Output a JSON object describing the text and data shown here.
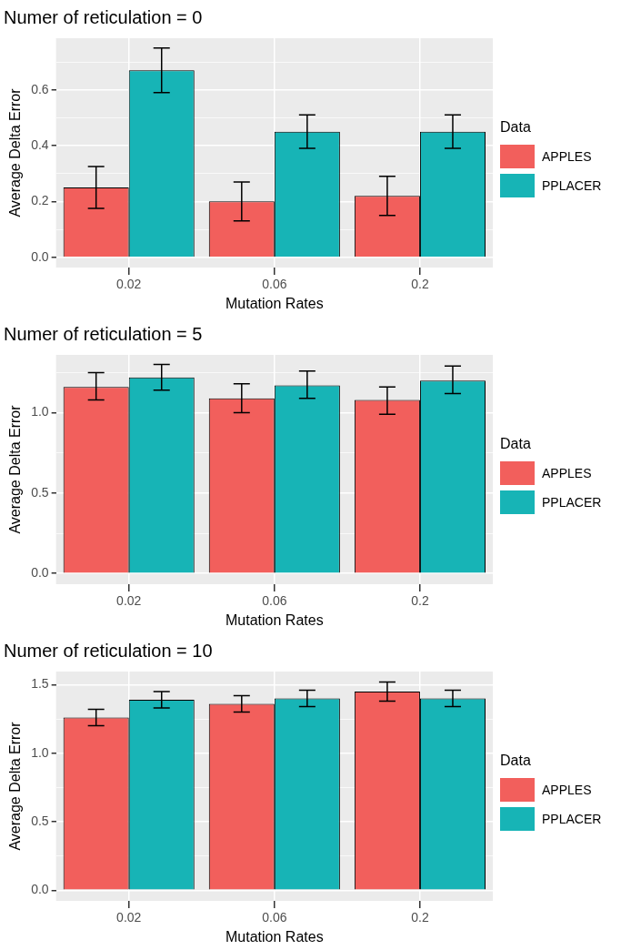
{
  "chart_data": [
    {
      "type": "bar",
      "title": "Numer of reticulation = 0",
      "xlabel": "Mutation Rates",
      "ylabel": "Average Delta Error",
      "legend_title": "Data",
      "legend": "right",
      "grid": true,
      "categories": [
        "0.02",
        "0.06",
        "0.2"
      ],
      "series": [
        {
          "name": "APPLES",
          "color": "#f25f5c",
          "values": [
            0.25,
            0.2,
            0.22
          ],
          "errors": [
            [
              0.175,
              0.325
            ],
            [
              0.13,
              0.27
            ],
            [
              0.15,
              0.29
            ]
          ]
        },
        {
          "name": "PPLACER",
          "color": "#17b4b6",
          "values": [
            0.67,
            0.45,
            0.45
          ],
          "errors": [
            [
              0.59,
              0.75
            ],
            [
              0.39,
              0.51
            ],
            [
              0.39,
              0.51
            ]
          ]
        }
      ],
      "ylim": [
        -0.037,
        0.785
      ],
      "yticks": [
        "0.0",
        {
          "value": 0.1,
          "label": null
        },
        {
          "value": 0.2,
          "label": "0.2"
        },
        {
          "value": 0.3,
          "label": null
        },
        {
          "value": 0.4,
          "label": "0.4"
        },
        {
          "value": 0.5,
          "label": null
        },
        {
          "value": 0.6,
          "label": "0.6"
        },
        {
          "value": 0.7,
          "label": null
        }
      ]
    },
    {
      "type": "bar",
      "title": "Numer of reticulation = 5",
      "xlabel": "Mutation Rates",
      "ylabel": "Average Delta Error",
      "legend_title": "Data",
      "legend": "right",
      "grid": true,
      "categories": [
        "0.02",
        "0.06",
        "0.2"
      ],
      "series": [
        {
          "name": "APPLES",
          "color": "#f25f5c",
          "values": [
            1.16,
            1.09,
            1.08
          ],
          "errors": [
            [
              1.08,
              1.25
            ],
            [
              1.0,
              1.18
            ],
            [
              0.99,
              1.16
            ]
          ]
        },
        {
          "name": "PPLACER",
          "color": "#17b4b6",
          "values": [
            1.22,
            1.17,
            1.2
          ],
          "errors": [
            [
              1.14,
              1.3
            ],
            [
              1.09,
              1.26
            ],
            [
              1.12,
              1.29
            ]
          ]
        }
      ],
      "ylim": [
        -0.067,
        1.36
      ],
      "yticks": [
        {
          "value": 0,
          "label": "0.0"
        },
        {
          "value": 0.25,
          "label": null
        },
        {
          "value": 0.5,
          "label": "0.5"
        },
        {
          "value": 0.75,
          "label": null
        },
        {
          "value": 1,
          "label": "1.0"
        },
        {
          "value": 1.25,
          "label": null
        }
      ]
    },
    {
      "type": "bar",
      "title": "Numer of reticulation = 10",
      "xlabel": "Mutation Rates",
      "ylabel": "Average Delta Error",
      "legend_title": "Data",
      "legend": "right",
      "grid": true,
      "categories": [
        "0.02",
        "0.06",
        "0.2"
      ],
      "series": [
        {
          "name": "APPLES",
          "color": "#f25f5c",
          "values": [
            1.26,
            1.36,
            1.45
          ],
          "errors": [
            [
              1.2,
              1.32
            ],
            [
              1.3,
              1.42
            ],
            [
              1.38,
              1.52
            ]
          ]
        },
        {
          "name": "PPLACER",
          "color": "#17b4b6",
          "values": [
            1.39,
            1.4,
            1.4
          ],
          "errors": [
            [
              1.33,
              1.45
            ],
            [
              1.34,
              1.46
            ],
            [
              1.34,
              1.46
            ]
          ]
        }
      ],
      "ylim": [
        -0.078,
        1.596
      ],
      "yticks": [
        {
          "value": 0,
          "label": "0.0"
        },
        {
          "value": 0.25,
          "label": null
        },
        {
          "value": 0.5,
          "label": "0.5"
        },
        {
          "value": 0.75,
          "label": null
        },
        {
          "value": 1,
          "label": "1.0"
        },
        {
          "value": 1.25,
          "label": null
        },
        {
          "value": 1.5,
          "label": "1.5"
        }
      ]
    }
  ]
}
